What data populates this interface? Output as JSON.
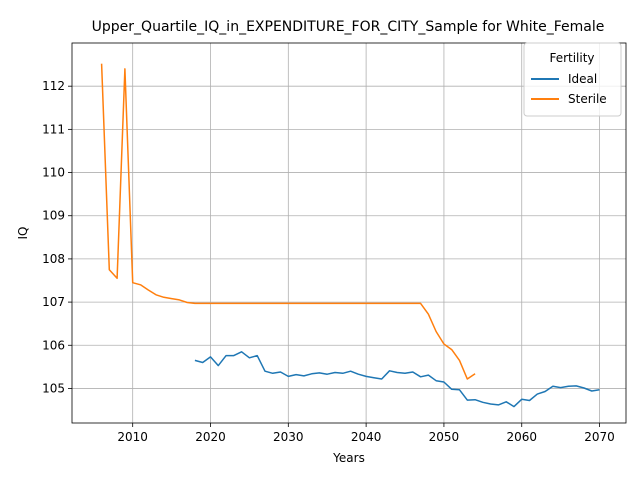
{
  "chart_data": {
    "type": "line",
    "title": "Upper_Quartile_IQ_in_EXPENDITURE_FOR_CITY_Sample for White_Female",
    "xlabel": "Years",
    "ylabel": "IQ",
    "xlim": [
      2002.2,
      2073.4
    ],
    "ylim": [
      104.2,
      113.0
    ],
    "xticks": [
      2010,
      2020,
      2030,
      2040,
      2050,
      2060,
      2070
    ],
    "yticks": [
      105,
      106,
      107,
      108,
      109,
      110,
      111,
      112
    ],
    "grid": true,
    "legend": {
      "title": "Fertility",
      "placement": "top-right"
    },
    "series": [
      {
        "name": "Ideal",
        "color": "#1f77b4",
        "x": [
          2018,
          2019,
          2020,
          2021,
          2022,
          2023,
          2024,
          2025,
          2026,
          2027,
          2028,
          2029,
          2030,
          2031,
          2032,
          2033,
          2034,
          2035,
          2036,
          2037,
          2038,
          2039,
          2040,
          2041,
          2042,
          2043,
          2044,
          2045,
          2046,
          2047,
          2048,
          2049,
          2050,
          2051,
          2052,
          2053,
          2054,
          2055,
          2056,
          2057,
          2058,
          2059,
          2060,
          2061,
          2062,
          2063,
          2064,
          2065,
          2066,
          2067,
          2068,
          2069,
          2070
        ],
        "y": [
          105.65,
          105.6,
          105.73,
          105.53,
          105.76,
          105.76,
          105.85,
          105.71,
          105.76,
          105.4,
          105.35,
          105.38,
          105.28,
          105.32,
          105.29,
          105.34,
          105.36,
          105.33,
          105.37,
          105.35,
          105.4,
          105.33,
          105.28,
          105.25,
          105.22,
          105.41,
          105.37,
          105.35,
          105.38,
          105.27,
          105.31,
          105.18,
          105.15,
          104.98,
          104.97,
          104.73,
          104.74,
          104.68,
          104.64,
          104.62,
          104.69,
          104.58,
          104.75,
          104.72,
          104.87,
          104.93,
          105.05,
          105.02,
          105.05,
          105.06,
          105.01,
          104.94,
          104.97
        ]
      },
      {
        "name": "Sterile",
        "color": "#ff7f0e",
        "x": [
          2006,
          2007,
          2008,
          2009,
          2010,
          2011,
          2012,
          2013,
          2014,
          2015,
          2016,
          2017,
          2018,
          2019,
          2020,
          2025,
          2030,
          2035,
          2040,
          2045,
          2046,
          2047,
          2048,
          2049,
          2050,
          2051,
          2052,
          2053,
          2054
        ],
        "y": [
          112.52,
          107.75,
          107.55,
          112.4,
          107.45,
          107.4,
          107.28,
          107.17,
          107.11,
          107.08,
          107.05,
          106.99,
          106.97,
          106.97,
          106.97,
          106.97,
          106.97,
          106.97,
          106.97,
          106.97,
          106.97,
          106.97,
          106.72,
          106.32,
          106.03,
          105.9,
          105.65,
          105.22,
          105.34
        ]
      }
    ]
  }
}
